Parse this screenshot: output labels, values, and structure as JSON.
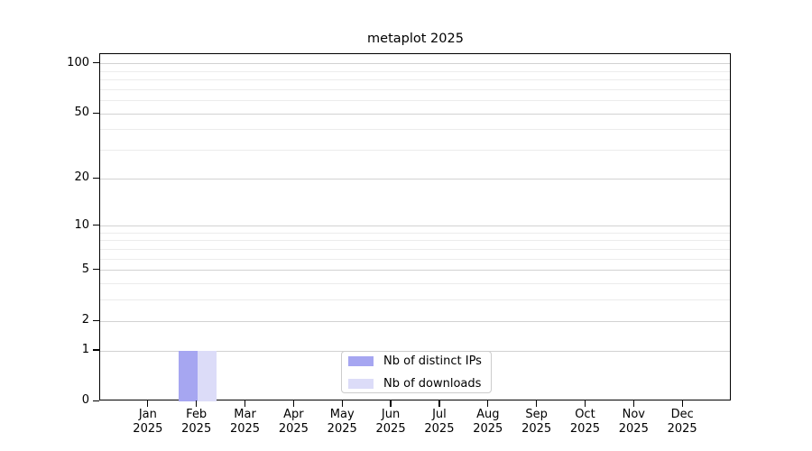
{
  "title": "metaplot 2025",
  "chart_data": {
    "type": "bar",
    "title": "metaplot 2025",
    "x_categories": [
      "Jan",
      "Feb",
      "Mar",
      "Apr",
      "May",
      "Jun",
      "Jul",
      "Aug",
      "Sep",
      "Oct",
      "Nov",
      "Dec"
    ],
    "x_year": "2025",
    "series": [
      {
        "name": "Nb of distinct IPs",
        "color": "#a6a6f1",
        "values": [
          0,
          1,
          0,
          0,
          0,
          0,
          0,
          0,
          0,
          0,
          0,
          0
        ]
      },
      {
        "name": "Nb of downloads",
        "color": "#dcdcf8",
        "values": [
          0,
          1,
          0,
          0,
          0,
          0,
          0,
          0,
          0,
          0,
          0,
          0
        ]
      }
    ],
    "y_axis": {
      "scale": "log1p",
      "tick_values": [
        0,
        1,
        2,
        5,
        10,
        20,
        50,
        100
      ],
      "tick_labels": [
        "0",
        "1",
        "2",
        "5",
        "10",
        "20",
        "50",
        "100"
      ],
      "minor_gridline_values": [
        3,
        4,
        6,
        7,
        8,
        9,
        30,
        40,
        60,
        70,
        80,
        90
      ],
      "ylim": [
        0,
        112
      ]
    },
    "grid": "horizontal",
    "legend_position": "lower center",
    "colors": {
      "major_grid": "#d2d2d2",
      "minor_grid": "#ececec",
      "axis": "#000000",
      "background": "#ffffff"
    }
  }
}
